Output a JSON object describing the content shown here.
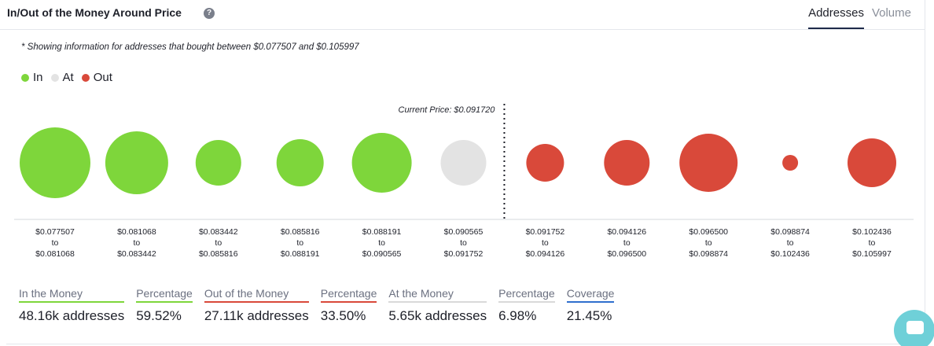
{
  "header": {
    "title": "In/Out of the Money Around Price",
    "help_icon": "question-circle-icon",
    "tabs": [
      {
        "label": "Addresses",
        "active": true
      },
      {
        "label": "Volume",
        "active": false
      }
    ]
  },
  "note": "* Showing information for addresses that bought between $0.077507 and $0.105997",
  "legend": [
    {
      "label": "In",
      "color": "#7ed63b"
    },
    {
      "label": "At",
      "color": "#e3e3e3"
    },
    {
      "label": "Out",
      "color": "#d9493a"
    }
  ],
  "chart_data": {
    "type": "scatter",
    "encoding": "bubble size = relative number of addresses in price range",
    "current_price_label": "Current Price: $0.091720",
    "current_price": 0.09172,
    "categories": [
      {
        "from": "$0.077507",
        "to": "$0.081068",
        "status": "in",
        "size": 45
      },
      {
        "from": "$0.081068",
        "to": "$0.083442",
        "status": "in",
        "size": 40
      },
      {
        "from": "$0.083442",
        "to": "$0.085816",
        "status": "in",
        "size": 29
      },
      {
        "from": "$0.085816",
        "to": "$0.088191",
        "status": "in",
        "size": 30
      },
      {
        "from": "$0.088191",
        "to": "$0.090565",
        "status": "in",
        "size": 38
      },
      {
        "from": "$0.090565",
        "to": "$0.091752",
        "status": "at",
        "size": 29
      },
      {
        "from": "$0.091752",
        "to": "$0.094126",
        "status": "out",
        "size": 24
      },
      {
        "from": "$0.094126",
        "to": "$0.096500",
        "status": "out",
        "size": 29
      },
      {
        "from": "$0.096500",
        "to": "$0.098874",
        "status": "out",
        "size": 37
      },
      {
        "from": "$0.098874",
        "to": "$0.102436",
        "status": "out",
        "size": 10
      },
      {
        "from": "$0.102436",
        "to": "$0.105997",
        "status": "out",
        "size": 31
      }
    ],
    "to_word": "to",
    "colors": {
      "in": "#7ed63b",
      "at": "#e3e3e3",
      "out": "#d9493a"
    }
  },
  "stats": [
    {
      "label": "In the Money",
      "value": "48.16k addresses",
      "accent": "green"
    },
    {
      "label": "Percentage",
      "value": "59.52%",
      "accent": "green"
    },
    {
      "label": "Out of the Money",
      "value": "27.11k addresses",
      "accent": "red"
    },
    {
      "label": "Percentage",
      "value": "33.50%",
      "accent": "red"
    },
    {
      "label": "At the Money",
      "value": "5.65k addresses",
      "accent": "grey"
    },
    {
      "label": "Percentage",
      "value": "6.98%",
      "accent": "grey"
    },
    {
      "label": "Coverage",
      "value": "21.45%",
      "accent": "blue"
    }
  ],
  "chat_widget_icon": "chat-bubble-icon"
}
